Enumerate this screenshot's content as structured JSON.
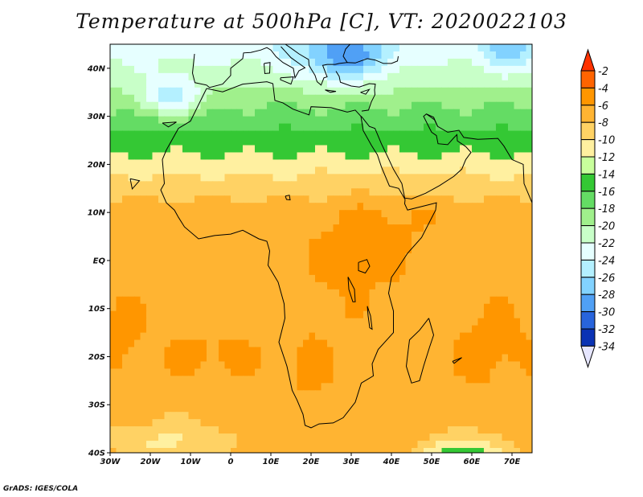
{
  "title": "Temperature at 500hPa [C], VT: 2020022103",
  "credit": "GrADS: IGES/COLA",
  "map": {
    "lon_min": -30,
    "lon_max": 75,
    "lat_min": -40,
    "lat_max": 45,
    "x_ticks": [
      {
        "value": -30,
        "label": "30W"
      },
      {
        "value": -20,
        "label": "20W"
      },
      {
        "value": -10,
        "label": "10W"
      },
      {
        "value": 0,
        "label": "0"
      },
      {
        "value": 10,
        "label": "10E"
      },
      {
        "value": 20,
        "label": "20E"
      },
      {
        "value": 30,
        "label": "30E"
      },
      {
        "value": 40,
        "label": "40E"
      },
      {
        "value": 50,
        "label": "50E"
      },
      {
        "value": 60,
        "label": "60E"
      },
      {
        "value": 70,
        "label": "70E"
      }
    ],
    "y_ticks": [
      {
        "value": 40,
        "label": "40N"
      },
      {
        "value": 30,
        "label": "30N"
      },
      {
        "value": 20,
        "label": "20N"
      },
      {
        "value": 10,
        "label": "10N"
      },
      {
        "value": 0,
        "label": "EQ"
      },
      {
        "value": -10,
        "label": "10S"
      },
      {
        "value": -20,
        "label": "20S"
      },
      {
        "value": -30,
        "label": "30S"
      },
      {
        "value": -40,
        "label": "40S"
      }
    ]
  },
  "colorbar": {
    "labels": [
      "-2",
      "-4",
      "-6",
      "-8",
      "-10",
      "-12",
      "-14",
      "-16",
      "-18",
      "-20",
      "-22",
      "-24",
      "-26",
      "-28",
      "-30",
      "-32",
      "-34"
    ],
    "colors": [
      "#ff3200",
      "#ff6400",
      "#ff9600",
      "#ffb432",
      "#ffd264",
      "#fff0a0",
      "#c8ff9c",
      "#34c834",
      "#64dc64",
      "#a0f08c",
      "#c8ffc8",
      "#e6ffff",
      "#b4f0ff",
      "#82d2ff",
      "#50a0f5",
      "#2864dc",
      "#0a32b4",
      "#000082"
    ]
  },
  "field": {
    "stops": [
      -34,
      -32,
      -30,
      -28,
      -26,
      -24,
      -22,
      -20,
      -18,
      -16,
      -14,
      -12,
      -10,
      -8,
      -6,
      -4,
      -2,
      0
    ],
    "colors": [
      "#000082",
      "#0a32b4",
      "#2864dc",
      "#50a0f5",
      "#82d2ff",
      "#b4f0ff",
      "#e6ffff",
      "#c8ffc8",
      "#a0f08c",
      "#64dc64",
      "#34c834",
      "#fff0a0",
      "#ffd264",
      "#ffb432",
      "#ff9600",
      "#ff6400",
      "#ff3200"
    ]
  }
}
